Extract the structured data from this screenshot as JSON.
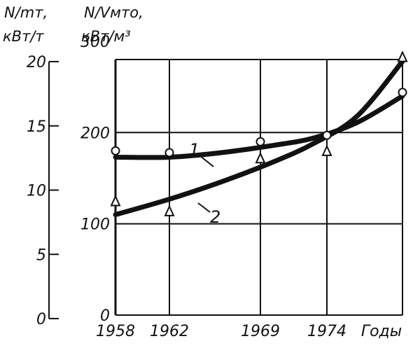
{
  "header": {
    "left_axis_title": "N/mт,",
    "left_axis_unit": "кВт/т",
    "right_axis_title": "N/Vмто,",
    "right_axis_unit": "кВт/м³"
  },
  "chart_data": {
    "type": "line",
    "x_ticks": [
      "1958",
      "1962",
      "1969",
      "1974"
    ],
    "x_axis_label": "Годы",
    "xlim": [
      1958,
      1979
    ],
    "y_left": {
      "ticks": [
        "0",
        "5",
        "10",
        "15",
        "20"
      ],
      "ylim": [
        0,
        20
      ]
    },
    "y_right": {
      "ticks": [
        "0",
        "100",
        "200",
        "300"
      ],
      "ylim": [
        0,
        280
      ]
    },
    "grid": true,
    "series": [
      {
        "name": "1",
        "marker": "circle",
        "axis": "right",
        "points": [
          [
            1958,
            180
          ],
          [
            1962,
            178
          ],
          [
            1969,
            190
          ],
          [
            1974,
            197
          ],
          [
            1979,
            244
          ]
        ],
        "curve": [
          [
            1958,
            173
          ],
          [
            1962,
            173
          ],
          [
            1966,
            178
          ],
          [
            1970,
            186
          ],
          [
            1973,
            194
          ],
          [
            1976,
            211
          ],
          [
            1979,
            240
          ]
        ]
      },
      {
        "name": "2",
        "marker": "triangle",
        "axis": "right",
        "points": [
          [
            1958,
            125
          ],
          [
            1962,
            114
          ],
          [
            1969,
            172
          ],
          [
            1974,
            180
          ],
          [
            1979,
            283
          ]
        ],
        "curve": [
          [
            1958,
            110
          ],
          [
            1962,
            127
          ],
          [
            1966,
            146
          ],
          [
            1970,
            168
          ],
          [
            1973,
            188
          ],
          [
            1976,
            218
          ],
          [
            1979,
            278
          ]
        ]
      }
    ]
  }
}
